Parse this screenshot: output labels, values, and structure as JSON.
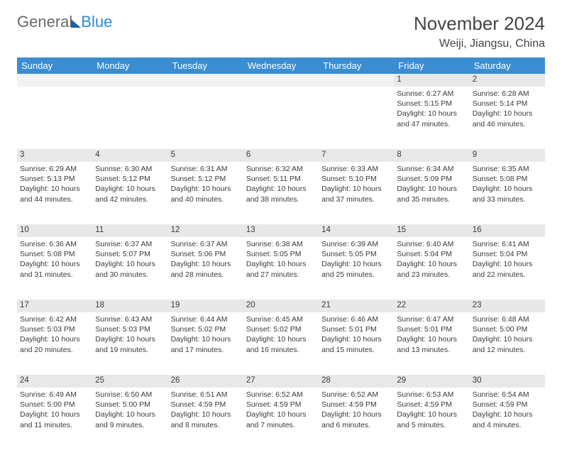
{
  "brand": {
    "text1": "General",
    "text2": "Blue"
  },
  "title": "November 2024",
  "location": "Weiji, Jiangsu, China",
  "colors": {
    "header_bg": "#3a8dd0",
    "header_text": "#ffffff",
    "daynum_bg": "#e8e8e8",
    "empty_bg": "#f2f2f2",
    "cell_text": "#3a3a3a",
    "logo_gray": "#6a6a6a",
    "logo_blue": "#2b8bd6",
    "logo_shape": "#1e5fa8"
  },
  "weekdays": [
    "Sunday",
    "Monday",
    "Tuesday",
    "Wednesday",
    "Thursday",
    "Friday",
    "Saturday"
  ],
  "weeks": [
    [
      {
        "n": "",
        "sunrise": "",
        "sunset": "",
        "daylight": ""
      },
      {
        "n": "",
        "sunrise": "",
        "sunset": "",
        "daylight": ""
      },
      {
        "n": "",
        "sunrise": "",
        "sunset": "",
        "daylight": ""
      },
      {
        "n": "",
        "sunrise": "",
        "sunset": "",
        "daylight": ""
      },
      {
        "n": "",
        "sunrise": "",
        "sunset": "",
        "daylight": ""
      },
      {
        "n": "1",
        "sunrise": "Sunrise: 6:27 AM",
        "sunset": "Sunset: 5:15 PM",
        "daylight": "Daylight: 10 hours and 47 minutes."
      },
      {
        "n": "2",
        "sunrise": "Sunrise: 6:28 AM",
        "sunset": "Sunset: 5:14 PM",
        "daylight": "Daylight: 10 hours and 46 minutes."
      }
    ],
    [
      {
        "n": "3",
        "sunrise": "Sunrise: 6:29 AM",
        "sunset": "Sunset: 5:13 PM",
        "daylight": "Daylight: 10 hours and 44 minutes."
      },
      {
        "n": "4",
        "sunrise": "Sunrise: 6:30 AM",
        "sunset": "Sunset: 5:12 PM",
        "daylight": "Daylight: 10 hours and 42 minutes."
      },
      {
        "n": "5",
        "sunrise": "Sunrise: 6:31 AM",
        "sunset": "Sunset: 5:12 PM",
        "daylight": "Daylight: 10 hours and 40 minutes."
      },
      {
        "n": "6",
        "sunrise": "Sunrise: 6:32 AM",
        "sunset": "Sunset: 5:11 PM",
        "daylight": "Daylight: 10 hours and 38 minutes."
      },
      {
        "n": "7",
        "sunrise": "Sunrise: 6:33 AM",
        "sunset": "Sunset: 5:10 PM",
        "daylight": "Daylight: 10 hours and 37 minutes."
      },
      {
        "n": "8",
        "sunrise": "Sunrise: 6:34 AM",
        "sunset": "Sunset: 5:09 PM",
        "daylight": "Daylight: 10 hours and 35 minutes."
      },
      {
        "n": "9",
        "sunrise": "Sunrise: 6:35 AM",
        "sunset": "Sunset: 5:08 PM",
        "daylight": "Daylight: 10 hours and 33 minutes."
      }
    ],
    [
      {
        "n": "10",
        "sunrise": "Sunrise: 6:36 AM",
        "sunset": "Sunset: 5:08 PM",
        "daylight": "Daylight: 10 hours and 31 minutes."
      },
      {
        "n": "11",
        "sunrise": "Sunrise: 6:37 AM",
        "sunset": "Sunset: 5:07 PM",
        "daylight": "Daylight: 10 hours and 30 minutes."
      },
      {
        "n": "12",
        "sunrise": "Sunrise: 6:37 AM",
        "sunset": "Sunset: 5:06 PM",
        "daylight": "Daylight: 10 hours and 28 minutes."
      },
      {
        "n": "13",
        "sunrise": "Sunrise: 6:38 AM",
        "sunset": "Sunset: 5:05 PM",
        "daylight": "Daylight: 10 hours and 27 minutes."
      },
      {
        "n": "14",
        "sunrise": "Sunrise: 6:39 AM",
        "sunset": "Sunset: 5:05 PM",
        "daylight": "Daylight: 10 hours and 25 minutes."
      },
      {
        "n": "15",
        "sunrise": "Sunrise: 6:40 AM",
        "sunset": "Sunset: 5:04 PM",
        "daylight": "Daylight: 10 hours and 23 minutes."
      },
      {
        "n": "16",
        "sunrise": "Sunrise: 6:41 AM",
        "sunset": "Sunset: 5:04 PM",
        "daylight": "Daylight: 10 hours and 22 minutes."
      }
    ],
    [
      {
        "n": "17",
        "sunrise": "Sunrise: 6:42 AM",
        "sunset": "Sunset: 5:03 PM",
        "daylight": "Daylight: 10 hours and 20 minutes."
      },
      {
        "n": "18",
        "sunrise": "Sunrise: 6:43 AM",
        "sunset": "Sunset: 5:03 PM",
        "daylight": "Daylight: 10 hours and 19 minutes."
      },
      {
        "n": "19",
        "sunrise": "Sunrise: 6:44 AM",
        "sunset": "Sunset: 5:02 PM",
        "daylight": "Daylight: 10 hours and 17 minutes."
      },
      {
        "n": "20",
        "sunrise": "Sunrise: 6:45 AM",
        "sunset": "Sunset: 5:02 PM",
        "daylight": "Daylight: 10 hours and 16 minutes."
      },
      {
        "n": "21",
        "sunrise": "Sunrise: 6:46 AM",
        "sunset": "Sunset: 5:01 PM",
        "daylight": "Daylight: 10 hours and 15 minutes."
      },
      {
        "n": "22",
        "sunrise": "Sunrise: 6:47 AM",
        "sunset": "Sunset: 5:01 PM",
        "daylight": "Daylight: 10 hours and 13 minutes."
      },
      {
        "n": "23",
        "sunrise": "Sunrise: 6:48 AM",
        "sunset": "Sunset: 5:00 PM",
        "daylight": "Daylight: 10 hours and 12 minutes."
      }
    ],
    [
      {
        "n": "24",
        "sunrise": "Sunrise: 6:49 AM",
        "sunset": "Sunset: 5:00 PM",
        "daylight": "Daylight: 10 hours and 11 minutes."
      },
      {
        "n": "25",
        "sunrise": "Sunrise: 6:50 AM",
        "sunset": "Sunset: 5:00 PM",
        "daylight": "Daylight: 10 hours and 9 minutes."
      },
      {
        "n": "26",
        "sunrise": "Sunrise: 6:51 AM",
        "sunset": "Sunset: 4:59 PM",
        "daylight": "Daylight: 10 hours and 8 minutes."
      },
      {
        "n": "27",
        "sunrise": "Sunrise: 6:52 AM",
        "sunset": "Sunset: 4:59 PM",
        "daylight": "Daylight: 10 hours and 7 minutes."
      },
      {
        "n": "28",
        "sunrise": "Sunrise: 6:52 AM",
        "sunset": "Sunset: 4:59 PM",
        "daylight": "Daylight: 10 hours and 6 minutes."
      },
      {
        "n": "29",
        "sunrise": "Sunrise: 6:53 AM",
        "sunset": "Sunset: 4:59 PM",
        "daylight": "Daylight: 10 hours and 5 minutes."
      },
      {
        "n": "30",
        "sunrise": "Sunrise: 6:54 AM",
        "sunset": "Sunset: 4:59 PM",
        "daylight": "Daylight: 10 hours and 4 minutes."
      }
    ]
  ]
}
